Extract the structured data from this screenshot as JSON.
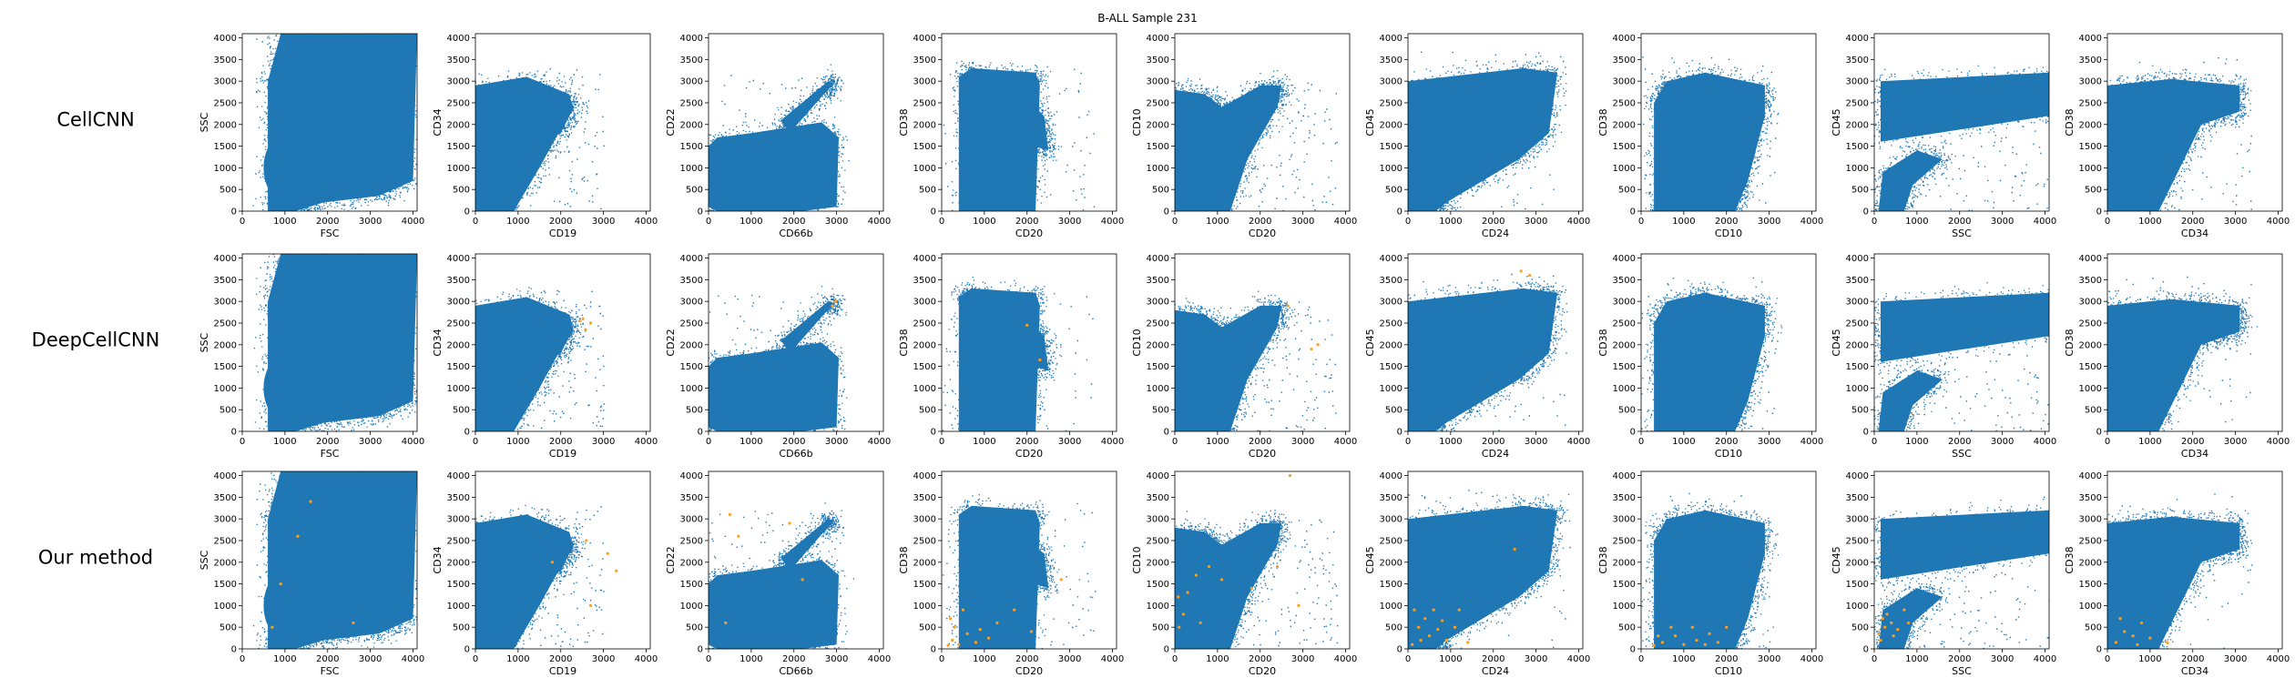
{
  "title": "B-ALL Sample 231",
  "colors": {
    "main": "#1f77b4",
    "highlight": "#ff9f1c"
  },
  "chart_data": {
    "type": "scatter",
    "layout": "3 rows x 9 columns",
    "rows": [
      "CellCNN",
      "DeepCellCNN",
      "Our method"
    ],
    "panels": [
      {
        "xlabel": "FSC",
        "ylabel": "SSC",
        "xlim": [
          0,
          4096
        ],
        "ylim": [
          0,
          4096
        ]
      },
      {
        "xlabel": "CD19",
        "ylabel": "CD34",
        "xlim": [
          0,
          4096
        ],
        "ylim": [
          0,
          4096
        ]
      },
      {
        "xlabel": "CD66b",
        "ylabel": "CD22",
        "xlim": [
          0,
          4096
        ],
        "ylim": [
          0,
          4096
        ]
      },
      {
        "xlabel": "CD20",
        "ylabel": "CD38",
        "xlim": [
          0,
          4096
        ],
        "ylim": [
          0,
          4096
        ]
      },
      {
        "xlabel": "CD20",
        "ylabel": "CD10",
        "xlim": [
          0,
          4096
        ],
        "ylim": [
          0,
          4096
        ]
      },
      {
        "xlabel": "CD24",
        "ylabel": "CD45",
        "xlim": [
          0,
          4096
        ],
        "ylim": [
          0,
          4096
        ]
      },
      {
        "xlabel": "CD10",
        "ylabel": "CD38",
        "xlim": [
          0,
          4096
        ],
        "ylim": [
          0,
          4096
        ]
      },
      {
        "xlabel": "SSC",
        "ylabel": "CD45",
        "xlim": [
          0,
          4096
        ],
        "ylim": [
          0,
          4096
        ]
      },
      {
        "xlabel": "CD34",
        "ylabel": "CD38",
        "xlim": [
          0,
          4096
        ],
        "ylim": [
          0,
          4096
        ]
      }
    ],
    "xticks": [
      0,
      1000,
      2000,
      3000,
      4000
    ],
    "yticks": [
      0,
      500,
      1000,
      1500,
      2000,
      2500,
      3000,
      3500,
      4000
    ],
    "highlight_points": {
      "DeepCellCNN": {
        "1": [
          [
            2450,
            2550
          ],
          [
            2520,
            2600
          ],
          [
            2580,
            2350
          ],
          [
            2700,
            2500
          ]
        ],
        "2": [
          [
            2900,
            2900
          ],
          [
            2980,
            3000
          ]
        ],
        "3": [
          [
            2000,
            2450
          ],
          [
            2300,
            1650
          ]
        ],
        "4": [
          [
            3200,
            1900
          ],
          [
            3350,
            2000
          ],
          [
            2650,
            2900
          ]
        ],
        "5": [
          [
            2650,
            3700
          ],
          [
            2850,
            3600
          ]
        ]
      },
      "Our method": {
        "0": [
          [
            700,
            500
          ],
          [
            1600,
            3400
          ],
          [
            1300,
            2600
          ],
          [
            2600,
            600
          ],
          [
            900,
            1500
          ]
        ],
        "1": [
          [
            2600,
            2500
          ],
          [
            3300,
            1800
          ],
          [
            2700,
            1000
          ],
          [
            1800,
            2000
          ],
          [
            3100,
            2200
          ]
        ],
        "2": [
          [
            500,
            3100
          ],
          [
            700,
            2600
          ],
          [
            1900,
            2900
          ],
          [
            2200,
            1600
          ],
          [
            400,
            600
          ]
        ],
        "3": [
          [
            150,
            80
          ],
          [
            250,
            200
          ],
          [
            400,
            100
          ],
          [
            600,
            350
          ],
          [
            300,
            500
          ],
          [
            800,
            150
          ],
          [
            1100,
            250
          ],
          [
            2100,
            400
          ],
          [
            1700,
            900
          ],
          [
            2800,
            1600
          ],
          [
            200,
            700
          ],
          [
            500,
            900
          ],
          [
            1300,
            600
          ],
          [
            900,
            450
          ]
        ],
        "4": [
          [
            80,
            1200
          ],
          [
            300,
            1300
          ],
          [
            500,
            1700
          ],
          [
            800,
            1900
          ],
          [
            1100,
            1600
          ],
          [
            200,
            800
          ],
          [
            600,
            600
          ],
          [
            2900,
            1000
          ],
          [
            2400,
            1900
          ],
          [
            1800,
            1400
          ],
          [
            100,
            500
          ],
          [
            2700,
            4000
          ]
        ],
        "5": [
          [
            100,
            100
          ],
          [
            300,
            200
          ],
          [
            500,
            300
          ],
          [
            250,
            500
          ],
          [
            700,
            450
          ],
          [
            900,
            200
          ],
          [
            400,
            700
          ],
          [
            150,
            900
          ],
          [
            600,
            900
          ],
          [
            1100,
            500
          ],
          [
            1400,
            150
          ],
          [
            800,
            650
          ],
          [
            2500,
            2300
          ],
          [
            1200,
            900
          ]
        ],
        "6": [
          [
            300,
            80
          ],
          [
            500,
            150
          ],
          [
            800,
            300
          ],
          [
            1000,
            100
          ],
          [
            1300,
            200
          ],
          [
            1600,
            350
          ],
          [
            1800,
            150
          ],
          [
            2000,
            500
          ],
          [
            700,
            500
          ],
          [
            1200,
            500
          ],
          [
            400,
            300
          ],
          [
            1500,
            100
          ]
        ],
        "7": [
          [
            100,
            350
          ],
          [
            250,
            500
          ],
          [
            400,
            600
          ],
          [
            200,
            700
          ],
          [
            550,
            450
          ],
          [
            300,
            800
          ],
          [
            700,
            900
          ],
          [
            150,
            200
          ],
          [
            450,
            300
          ],
          [
            800,
            600
          ]
        ],
        "8": [
          [
            200,
            150
          ],
          [
            400,
            400
          ],
          [
            600,
            300
          ],
          [
            800,
            600
          ],
          [
            1000,
            250
          ],
          [
            300,
            700
          ],
          [
            700,
            100
          ],
          [
            1400,
            150
          ]
        ]
      }
    }
  }
}
